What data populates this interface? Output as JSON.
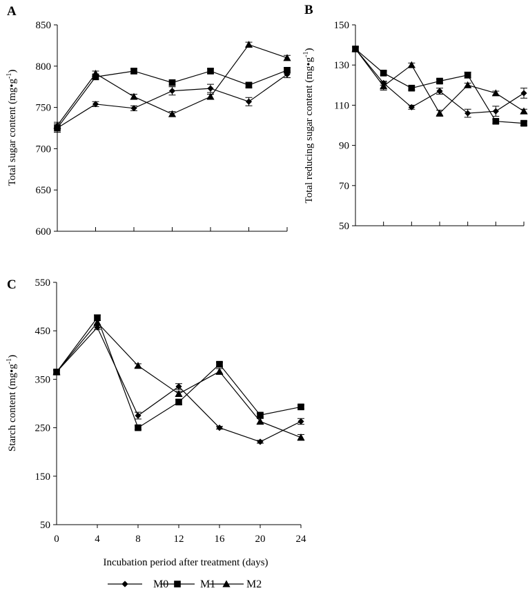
{
  "colors": {
    "ink": "#000000",
    "background": "#ffffff"
  },
  "legend": {
    "entries": [
      {
        "name": "M0",
        "marker": "diamond"
      },
      {
        "name": "M1",
        "marker": "square"
      },
      {
        "name": "M2",
        "marker": "triangle"
      }
    ]
  },
  "chart_data": [
    {
      "panel": "A",
      "type": "line",
      "ylabel_main": "Total sugar content (mg•g",
      "ylabel_unit_sup": "-1",
      "ylabel_close": ")",
      "x": [
        0,
        4,
        8,
        12,
        16,
        20,
        24
      ],
      "ylim": [
        600,
        850
      ],
      "yticks": [
        600,
        650,
        700,
        750,
        800,
        850
      ],
      "xtick_labels_shown": false,
      "series": [
        {
          "name": "M0",
          "values": [
            725,
            754,
            749,
            770,
            773,
            757,
            790
          ],
          "errors": [
            5,
            3,
            3,
            5,
            5,
            5,
            4
          ]
        },
        {
          "name": "M1",
          "values": [
            725,
            787,
            794,
            780,
            794,
            777,
            795
          ],
          "errors": [
            5,
            3,
            3,
            3,
            3,
            3,
            3
          ]
        },
        {
          "name": "M2",
          "values": [
            728,
            791,
            763,
            742,
            763,
            826,
            810
          ],
          "errors": [
            4,
            3,
            3,
            3,
            3,
            3,
            3
          ]
        }
      ]
    },
    {
      "panel": "B",
      "type": "line",
      "ylabel_main": "Total reducing sugar content (mg•g",
      "ylabel_unit_sup": "-1",
      "ylabel_close": ")",
      "x": [
        0,
        4,
        8,
        12,
        16,
        20,
        24
      ],
      "ylim": [
        50,
        150
      ],
      "yticks": [
        50,
        70,
        90,
        110,
        130,
        150
      ],
      "xtick_labels_shown": false,
      "series": [
        {
          "name": "M0",
          "values": [
            138,
            121,
            109,
            117,
            106,
            107,
            116
          ],
          "errors": [
            1,
            1,
            1,
            1.5,
            2,
            2.5,
            2.5
          ]
        },
        {
          "name": "M1",
          "values": [
            138,
            126,
            118.5,
            122,
            125,
            102,
            101
          ],
          "errors": [
            1,
            1,
            1,
            1,
            1.5,
            1,
            1
          ]
        },
        {
          "name": "M2",
          "values": [
            138,
            119.5,
            130,
            106,
            120,
            116,
            107
          ],
          "errors": [
            1,
            2,
            1,
            1.5,
            1,
            1,
            1
          ]
        }
      ]
    },
    {
      "panel": "C",
      "type": "line",
      "ylabel_main": "Starch content (mg•g",
      "ylabel_unit_sup": "-1",
      "ylabel_close": ")",
      "xlabel": "Incubation period after treatment (days)",
      "x": [
        0,
        4,
        8,
        12,
        16,
        20,
        24
      ],
      "xtick_labels": [
        "0",
        "4",
        "8",
        "12",
        "16",
        "20",
        "24"
      ],
      "ylim": [
        50,
        550
      ],
      "yticks": [
        50,
        150,
        250,
        350,
        450,
        550
      ],
      "xtick_labels_shown": true,
      "series": [
        {
          "name": "M0",
          "values": [
            365,
            457,
            275,
            335,
            250,
            221,
            263
          ],
          "errors": [
            4,
            4,
            7,
            6,
            3,
            3,
            6
          ]
        },
        {
          "name": "M1",
          "values": [
            365,
            477,
            250,
            303,
            381,
            276,
            293
          ],
          "errors": [
            4,
            6,
            4,
            5,
            4,
            4,
            4
          ]
        },
        {
          "name": "M2",
          "values": [
            365,
            467,
            378,
            320,
            366,
            263,
            230
          ],
          "errors": [
            4,
            4,
            4,
            5,
            6,
            6,
            6
          ]
        }
      ]
    }
  ]
}
